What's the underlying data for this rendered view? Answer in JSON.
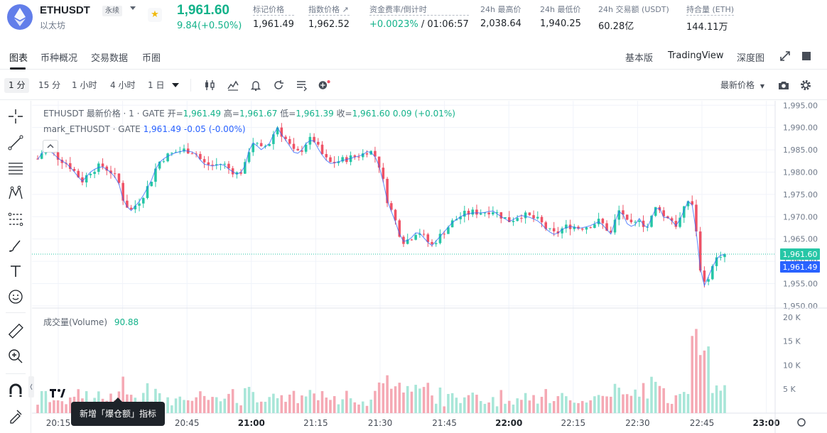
{
  "header": {
    "symbol": "ETHUSDT",
    "contract_tag": "永续",
    "coin_name": "以太坊",
    "last_price": "1,961.60",
    "change": "9.84(+0.50%)",
    "stats": [
      {
        "label": "标记价格",
        "value": "1,961.49"
      },
      {
        "label": "指数价格 ↗",
        "value": "1,962.52"
      },
      {
        "label": "资金费率/倒计时",
        "value_green": "+0.0023%",
        "value_rest": " / 01:06:57"
      },
      {
        "label": "24h 最高价",
        "value": "2,038.64"
      },
      {
        "label": "24h 最低价",
        "value": "1,940.25"
      },
      {
        "label": "24h 交易额 (USDT)",
        "value": "60.28亿"
      },
      {
        "label": "持合量 (ETH)",
        "value": "144.11万"
      }
    ]
  },
  "tabs": {
    "left": [
      "图表",
      "币种概况",
      "交易数据",
      "币圈"
    ],
    "right": [
      "基本版",
      "TradingView",
      "深度图"
    ]
  },
  "toolbar": {
    "timeframes": [
      "1 分",
      "15 分",
      "1 小时",
      "4 小时",
      "1 日"
    ],
    "price_type": "最新价格"
  },
  "legend": {
    "main": {
      "title": "ETHUSDT 最新价格 · 1 · GATE",
      "open_label": "开=",
      "open": "1,961.49",
      "high_label": "高=",
      "high": "1,961.67",
      "low_label": "低=",
      "low": "1,961.39",
      "close_label": "收=",
      "close": "1,961.60",
      "change": "0.09 (+0.01%)"
    },
    "mark": {
      "title": "mark_ETHUSDT · GATE",
      "value": "1,961.49",
      "change": "-0.05 (-0.00%)"
    },
    "volume": {
      "title": "成交量(Volume)",
      "value": "90.88"
    }
  },
  "toast": {
    "text": "新增「爆仓额」指标"
  },
  "colors": {
    "up": "#26c6a6",
    "down": "#ef5266",
    "up_text": "#13b28a",
    "mark": "#2962ff"
  },
  "chart_data": {
    "type": "candlestick",
    "interval": "1m",
    "title": "ETHUSDT 最新价格 · 1 · GATE",
    "price_axis": {
      "ticks": [
        "1,995.00",
        "1,990.00",
        "1,985.00",
        "1,980.00",
        "1,975.00",
        "1,970.00",
        "1,965.00",
        "1,960.00",
        "1,955.00",
        "1,950.00"
      ],
      "range": [
        1949.5,
        1996
      ]
    },
    "price_labels": {
      "last": "1,961.60",
      "mark": "1,961.49"
    },
    "volume_axis": {
      "ticks": [
        "20 K",
        "15 K",
        "10 K",
        "5 K"
      ],
      "range": [
        0,
        21000
      ]
    },
    "time_axis": {
      "labels": [
        "20:15",
        "20:30",
        "20:45",
        "21:00",
        "21:15",
        "21:30",
        "21:45",
        "22:00",
        "22:15",
        "22:30",
        "22:45",
        "23:00"
      ],
      "bold": [
        "21:00",
        "22:00",
        "23:00"
      ]
    },
    "path_hint_price": [
      [
        0,
        1983
      ],
      [
        8,
        1985.5
      ],
      [
        15,
        1984.5
      ],
      [
        22,
        1983
      ],
      [
        30,
        1982
      ],
      [
        38,
        1980
      ],
      [
        45,
        1978
      ],
      [
        55,
        1980.5
      ],
      [
        65,
        1981.5
      ],
      [
        75,
        1980
      ],
      [
        82,
        1978
      ],
      [
        88,
        1973
      ],
      [
        95,
        1971.5
      ],
      [
        105,
        1974
      ],
      [
        115,
        1978
      ],
      [
        122,
        1982
      ],
      [
        130,
        1983.5
      ],
      [
        140,
        1984.5
      ],
      [
        150,
        1985
      ],
      [
        160,
        1984.5
      ],
      [
        168,
        1982
      ],
      [
        178,
        1981.5
      ],
      [
        188,
        1982
      ],
      [
        196,
        1980.5
      ],
      [
        204,
        1979.5
      ],
      [
        210,
        1981
      ],
      [
        216,
        1986
      ],
      [
        220,
        1987
      ],
      [
        226,
        1985
      ],
      [
        232,
        1986
      ],
      [
        238,
        1987
      ],
      [
        242,
        1991
      ],
      [
        246,
        1989
      ],
      [
        250,
        1988
      ],
      [
        256,
        1986
      ],
      [
        262,
        1984
      ],
      [
        268,
        1985
      ],
      [
        274,
        1987
      ],
      [
        280,
        1987.5
      ],
      [
        286,
        1985
      ],
      [
        292,
        1983
      ],
      [
        298,
        1982
      ],
      [
        306,
        1982.5
      ],
      [
        314,
        1983
      ],
      [
        322,
        1983.5
      ],
      [
        330,
        1984
      ],
      [
        336,
        1985
      ],
      [
        342,
        1984
      ],
      [
        348,
        1981
      ],
      [
        352,
        1977
      ],
      [
        356,
        1973
      ],
      [
        362,
        1970
      ],
      [
        368,
        1966
      ],
      [
        372,
        1964.5
      ],
      [
        378,
        1965
      ],
      [
        386,
        1967
      ],
      [
        394,
        1965
      ],
      [
        400,
        1963.5
      ],
      [
        406,
        1965
      ],
      [
        414,
        1967
      ],
      [
        422,
        1969
      ],
      [
        432,
        1970.5
      ],
      [
        442,
        1971
      ],
      [
        452,
        1971
      ],
      [
        462,
        1971.5
      ],
      [
        472,
        1970
      ],
      [
        480,
        1969
      ],
      [
        490,
        1970.5
      ],
      [
        500,
        1970
      ],
      [
        510,
        1969
      ],
      [
        518,
        1967
      ],
      [
        526,
        1966
      ],
      [
        534,
        1967.5
      ],
      [
        542,
        1968
      ],
      [
        550,
        1967.5
      ],
      [
        560,
        1968
      ],
      [
        570,
        1969
      ],
      [
        576,
        1968
      ],
      [
        582,
        1966
      ],
      [
        588,
        1970
      ],
      [
        592,
        1972
      ],
      [
        596,
        1970
      ],
      [
        600,
        1968
      ],
      [
        606,
        1968
      ],
      [
        612,
        1970
      ],
      [
        618,
        1967
      ],
      [
        624,
        1970
      ],
      [
        630,
        1973
      ],
      [
        636,
        1970
      ],
      [
        642,
        1970
      ],
      [
        648,
        1968
      ],
      [
        654,
        1970
      ],
      [
        660,
        1973.5
      ],
      [
        664,
        1974
      ],
      [
        668,
        1969
      ],
      [
        671,
        1963
      ],
      [
        674,
        1957
      ],
      [
        677,
        1954.5
      ],
      [
        680,
        1956
      ],
      [
        684,
        1958
      ],
      [
        688,
        1960
      ],
      [
        692,
        1961.5
      ],
      [
        698,
        1961.6
      ]
    ],
    "last_price": 1961.6,
    "mark_price": 1961.49
  }
}
